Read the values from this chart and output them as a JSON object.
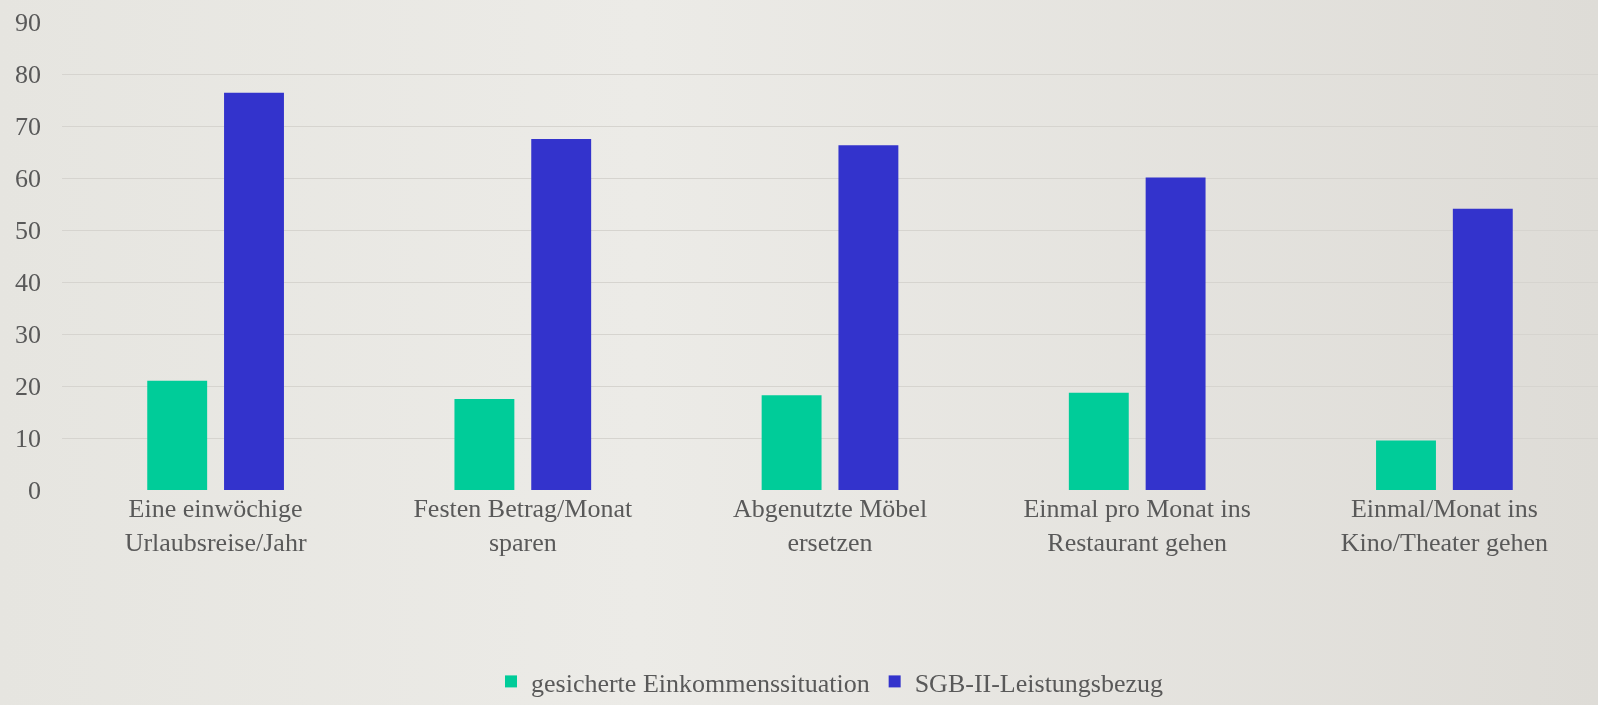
{
  "chart_data": {
    "type": "bar",
    "categories": [
      "Eine einwöchige\nUrlaubsreise/Jahr",
      "Festen Betrag/Monat\nsparen",
      "Abgenutzte Möbel\nersetzen",
      "Einmal pro Monat ins\nRestaurant gehen",
      "Einmal/Monat ins\nKino/Theater gehen"
    ],
    "series": [
      {
        "name": "gesicherte Einkommenssituation",
        "color": "#00cc99",
        "values": [
          21,
          17.5,
          18.2,
          18.7,
          9.5
        ]
      },
      {
        "name": "SGB-II-Leistungsbezug",
        "color": "#3333cc",
        "values": [
          76.4,
          67.5,
          66.3,
          60.1,
          54.1
        ]
      }
    ],
    "ylim": [
      0,
      90
    ],
    "yticks": [
      0,
      10,
      20,
      30,
      40,
      50,
      60,
      70,
      80,
      90
    ],
    "grid": "y",
    "legend": "bottom"
  }
}
